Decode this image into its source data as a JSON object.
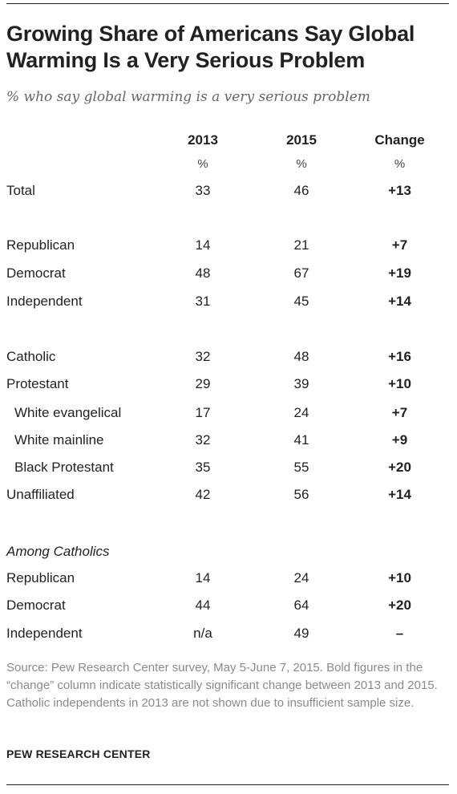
{
  "chart_data": {
    "type": "table",
    "title": "Growing Share of Americans Say Global Warming Is a Very Serious Problem",
    "subtitle": "% who say global warming is a very serious problem",
    "columns": [
      "2013",
      "2015",
      "Change"
    ],
    "units": [
      "%",
      "%",
      "%"
    ],
    "rows": [
      {
        "label": "Total",
        "values": [
          "33",
          "46",
          "+13"
        ],
        "indent": false
      },
      {
        "label": "Republican",
        "values": [
          "14",
          "21",
          "+7"
        ],
        "indent": false
      },
      {
        "label": "Democrat",
        "values": [
          "48",
          "67",
          "+19"
        ],
        "indent": false
      },
      {
        "label": "Independent",
        "values": [
          "31",
          "45",
          "+14"
        ],
        "indent": false
      },
      {
        "label": "Catholic",
        "values": [
          "32",
          "48",
          "+16"
        ],
        "indent": false
      },
      {
        "label": "Protestant",
        "values": [
          "29",
          "39",
          "+10"
        ],
        "indent": false
      },
      {
        "label": "White evangelical",
        "values": [
          "17",
          "24",
          "+7"
        ],
        "indent": true
      },
      {
        "label": "White mainline",
        "values": [
          "32",
          "41",
          "+9"
        ],
        "indent": true
      },
      {
        "label": "Black Protestant",
        "values": [
          "35",
          "55",
          "+20"
        ],
        "indent": true
      },
      {
        "label": "Unaffiliated",
        "values": [
          "42",
          "56",
          "+14"
        ],
        "indent": false
      },
      {
        "label": "Republican",
        "values": [
          "14",
          "24",
          "+10"
        ],
        "indent": false
      },
      {
        "label": "Democrat",
        "values": [
          "44",
          "64",
          "+20"
        ],
        "indent": false
      },
      {
        "label": "Independent",
        "values": [
          "n/a",
          "49",
          "–"
        ],
        "indent": false
      }
    ],
    "section_label": "Among Catholics"
  },
  "source": "Source: Pew Research Center survey, May 5-June 7, 2015. Bold figures in the “change” column indicate statistically significant change between 2013 and 2015. Catholic independents in 2013 are not shown due to insufficient sample size.",
  "credit": "PEW RESEARCH CENTER"
}
